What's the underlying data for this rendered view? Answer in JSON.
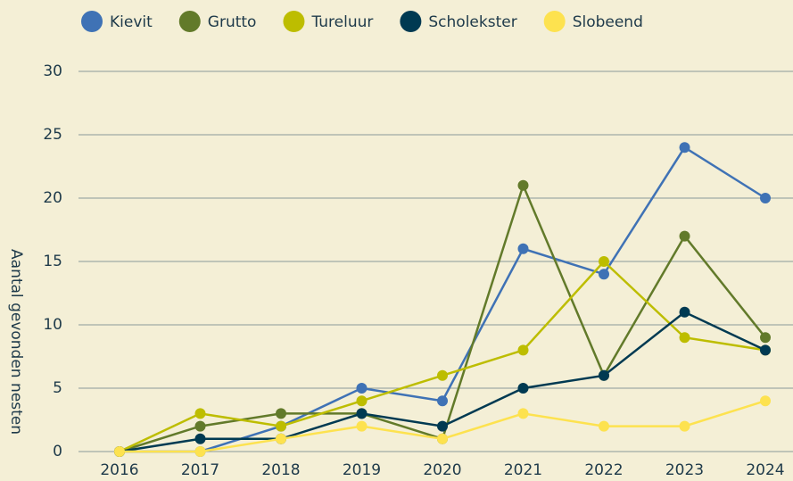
{
  "chart_data": {
    "type": "line",
    "y_label": "Aantal gevonden nesten",
    "x": [
      "2016",
      "2017",
      "2018",
      "2019",
      "2020",
      "2021",
      "2022",
      "2023",
      "2024"
    ],
    "series": [
      {
        "name": "Kievit",
        "color": "#3f72b5",
        "values": [
          0,
          0,
          2,
          5,
          4,
          16,
          14,
          24,
          20
        ]
      },
      {
        "name": "Grutto",
        "color": "#627a2a",
        "values": [
          0,
          2,
          3,
          3,
          1,
          21,
          6,
          17,
          9
        ]
      },
      {
        "name": "Tureluur",
        "color": "#bdbd00",
        "values": [
          0,
          3,
          2,
          4,
          6,
          8,
          15,
          9,
          8
        ]
      },
      {
        "name": "Scholekster",
        "color": "#003a52",
        "values": [
          0,
          1,
          1,
          3,
          2,
          5,
          6,
          11,
          8
        ]
      },
      {
        "name": "Slobeend",
        "color": "#fde24f",
        "values": [
          0,
          0,
          1,
          2,
          1,
          3,
          2,
          2,
          4
        ]
      }
    ],
    "ylim": [
      0,
      30
    ],
    "yticks": [
      0,
      5,
      10,
      15,
      20,
      25,
      30
    ],
    "grid": true,
    "legend": "top"
  }
}
